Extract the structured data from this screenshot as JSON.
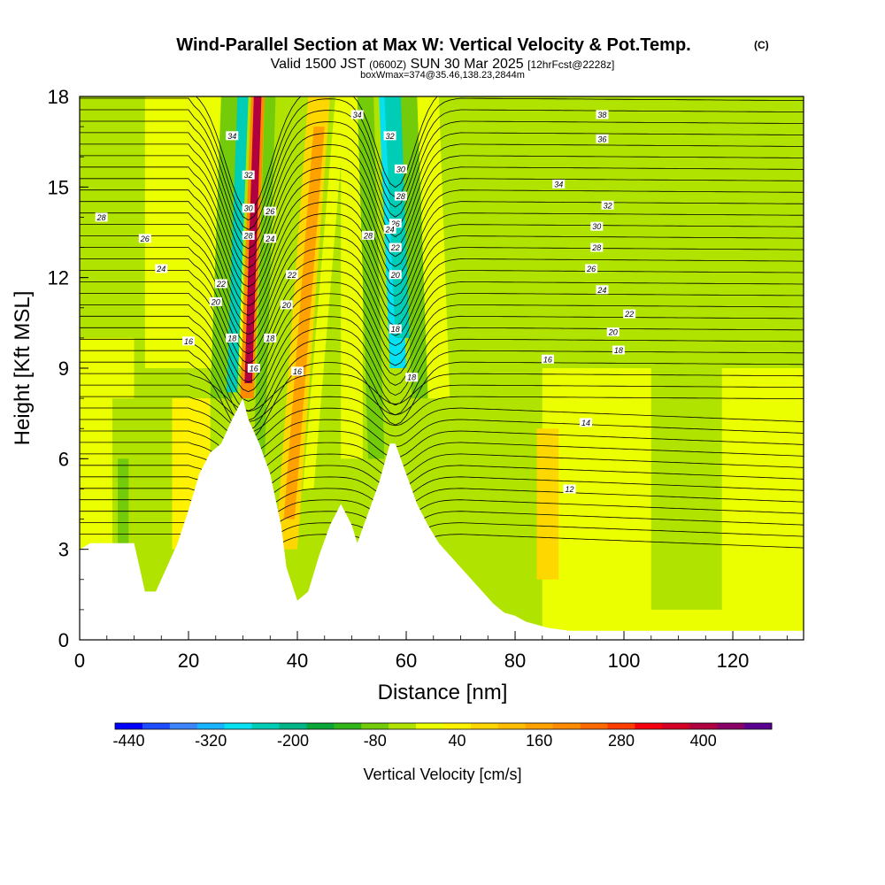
{
  "title": {
    "main": "Wind-Parallel Section at Max W: Vertical Velocity & Pot.Temp.",
    "main_suffix": "(C)",
    "valid_prefix": "Valid 1500 JST",
    "valid_utc": "(0600Z)",
    "valid_date": "SUN 30 Mar 2025",
    "forecast_tag": "[12hrFcst@2228z]",
    "box_info": "boxWmax=374@35.46,138.23,2844m"
  },
  "chart_data": {
    "type": "heatmap",
    "xlabel": "Distance [nm]",
    "ylabel": "Height [Kft MSL]",
    "xlim": [
      0,
      133
    ],
    "ylim": [
      0,
      18
    ],
    "x_ticks": [
      0,
      20,
      40,
      60,
      80,
      100,
      120
    ],
    "x_tick_labels": [
      "0",
      "20",
      "40",
      "60",
      "80",
      "100",
      "120"
    ],
    "y_ticks": [
      0,
      3,
      6,
      9,
      12,
      15,
      18
    ],
    "y_tick_labels": [
      "0",
      "3",
      "6",
      "9",
      "12",
      "15",
      "18"
    ],
    "colorbar": {
      "label": "Vertical Velocity [cm/s]",
      "min": -480,
      "max": 480,
      "step": 40,
      "tick_values": [
        -440,
        -320,
        -200,
        -80,
        40,
        160,
        280,
        400
      ],
      "tick_labels": [
        "-440",
        "-320",
        "-200",
        "-80",
        "40",
        "160",
        "280",
        "400"
      ],
      "colors": [
        "#0000ff",
        "#1e4cff",
        "#3d84ff",
        "#19b4ff",
        "#05e1f0",
        "#00cdb5",
        "#00b487",
        "#0aa63a",
        "#31b519",
        "#74cb0a",
        "#b1e301",
        "#ecff00",
        "#fff200",
        "#ffd700",
        "#ffbd00",
        "#ffa200",
        "#ff8c00",
        "#ff6a00",
        "#ff3d00",
        "#f40010",
        "#d40025",
        "#b00040",
        "#8b0066",
        "#5a0090"
      ]
    },
    "terrain_kft": [
      [
        0,
        3.0
      ],
      [
        2,
        3.2
      ],
      [
        10,
        3.2
      ],
      [
        11,
        2.4
      ],
      [
        12,
        1.6
      ],
      [
        14,
        1.6
      ],
      [
        16,
        2.4
      ],
      [
        18,
        3.2
      ],
      [
        20,
        4.3
      ],
      [
        22,
        5.5
      ],
      [
        24,
        6.2
      ],
      [
        26,
        6.5
      ],
      [
        28,
        7.3
      ],
      [
        30,
        8.0
      ],
      [
        31,
        7.3
      ],
      [
        33,
        6.5
      ],
      [
        35,
        5.5
      ],
      [
        37,
        3.8
      ],
      [
        38,
        2.4
      ],
      [
        40,
        1.3
      ],
      [
        42,
        1.6
      ],
      [
        44,
        2.8
      ],
      [
        46,
        3.8
      ],
      [
        48,
        4.5
      ],
      [
        50,
        3.8
      ],
      [
        51,
        3.2
      ],
      [
        53,
        4.2
      ],
      [
        55,
        5.2
      ],
      [
        57,
        6.5
      ],
      [
        58,
        6.5
      ],
      [
        60,
        5.5
      ],
      [
        62,
        4.5
      ],
      [
        64,
        3.8
      ],
      [
        66,
        3.2
      ],
      [
        68,
        2.8
      ],
      [
        70,
        2.4
      ],
      [
        72,
        2.0
      ],
      [
        74,
        1.6
      ],
      [
        76,
        1.2
      ],
      [
        78,
        0.9
      ],
      [
        80,
        0.8
      ],
      [
        82,
        0.6
      ],
      [
        84,
        0.5
      ],
      [
        86,
        0.4
      ],
      [
        90,
        0.3
      ],
      [
        133,
        0.3
      ]
    ],
    "theta_contours_C": [
      12,
      14,
      16,
      18,
      20,
      22,
      24,
      26,
      28,
      30,
      32,
      34,
      36,
      38
    ],
    "contour_labels": [
      {
        "text": "28",
        "x": 4,
        "y": 14.0
      },
      {
        "text": "26",
        "x": 12,
        "y": 13.3
      },
      {
        "text": "24",
        "x": 15,
        "y": 12.3
      },
      {
        "text": "22",
        "x": 26,
        "y": 11.8
      },
      {
        "text": "20",
        "x": 25,
        "y": 11.2
      },
      {
        "text": "16",
        "x": 20,
        "y": 9.9
      },
      {
        "text": "34",
        "x": 28,
        "y": 16.7
      },
      {
        "text": "32",
        "x": 31,
        "y": 15.4
      },
      {
        "text": "30",
        "x": 31,
        "y": 14.3
      },
      {
        "text": "28",
        "x": 31,
        "y": 13.4
      },
      {
        "text": "26",
        "x": 35,
        "y": 14.2
      },
      {
        "text": "24",
        "x": 35,
        "y": 13.3
      },
      {
        "text": "22",
        "x": 39,
        "y": 12.1
      },
      {
        "text": "20",
        "x": 38,
        "y": 11.1
      },
      {
        "text": "18",
        "x": 28,
        "y": 10.0
      },
      {
        "text": "18",
        "x": 35,
        "y": 10.0
      },
      {
        "text": "16",
        "x": 32,
        "y": 9.0
      },
      {
        "text": "16",
        "x": 40,
        "y": 8.9
      },
      {
        "text": "34",
        "x": 51,
        "y": 17.4
      },
      {
        "text": "32",
        "x": 57,
        "y": 16.7
      },
      {
        "text": "30",
        "x": 59,
        "y": 15.6
      },
      {
        "text": "28",
        "x": 59,
        "y": 14.7
      },
      {
        "text": "26",
        "x": 58,
        "y": 13.8
      },
      {
        "text": "24",
        "x": 57,
        "y": 13.6
      },
      {
        "text": "22",
        "x": 58,
        "y": 13.0
      },
      {
        "text": "20",
        "x": 58,
        "y": 12.1
      },
      {
        "text": "28",
        "x": 53,
        "y": 13.4
      },
      {
        "text": "18",
        "x": 58,
        "y": 10.3
      },
      {
        "text": "18",
        "x": 61,
        "y": 8.7
      },
      {
        "text": "16",
        "x": 86,
        "y": 9.3
      },
      {
        "text": "14",
        "x": 93,
        "y": 7.2
      },
      {
        "text": "12",
        "x": 90,
        "y": 5.0
      },
      {
        "text": "38",
        "x": 96,
        "y": 17.4
      },
      {
        "text": "36",
        "x": 96,
        "y": 16.6
      },
      {
        "text": "34",
        "x": 88,
        "y": 15.1
      },
      {
        "text": "32",
        "x": 97,
        "y": 14.4
      },
      {
        "text": "30",
        "x": 95,
        "y": 13.7
      },
      {
        "text": "28",
        "x": 95,
        "y": 13.0
      },
      {
        "text": "26",
        "x": 94,
        "y": 12.3
      },
      {
        "text": "24",
        "x": 96,
        "y": 11.6
      },
      {
        "text": "22",
        "x": 101,
        "y": 10.8
      },
      {
        "text": "20",
        "x": 98,
        "y": 10.2
      },
      {
        "text": "18",
        "x": 99,
        "y": 9.6
      }
    ],
    "velocity_features": [
      {
        "kind": "updraft",
        "x_base": 31,
        "x_top": 33,
        "y_base": 8,
        "y_top": 18,
        "max_cms": 400
      },
      {
        "kind": "downdraft",
        "x_base": 29,
        "x_top": 29,
        "y_base": 9,
        "y_top": 17,
        "min_cms": -300
      },
      {
        "kind": "downdraft",
        "x_base": 62,
        "x_top": 58,
        "y_base": 10,
        "y_top": 18,
        "min_cms": -320
      },
      {
        "kind": "updraft",
        "x_base": 39,
        "x_top": 44,
        "y_base": 5,
        "y_top": 17,
        "max_cms": 200
      }
    ]
  }
}
